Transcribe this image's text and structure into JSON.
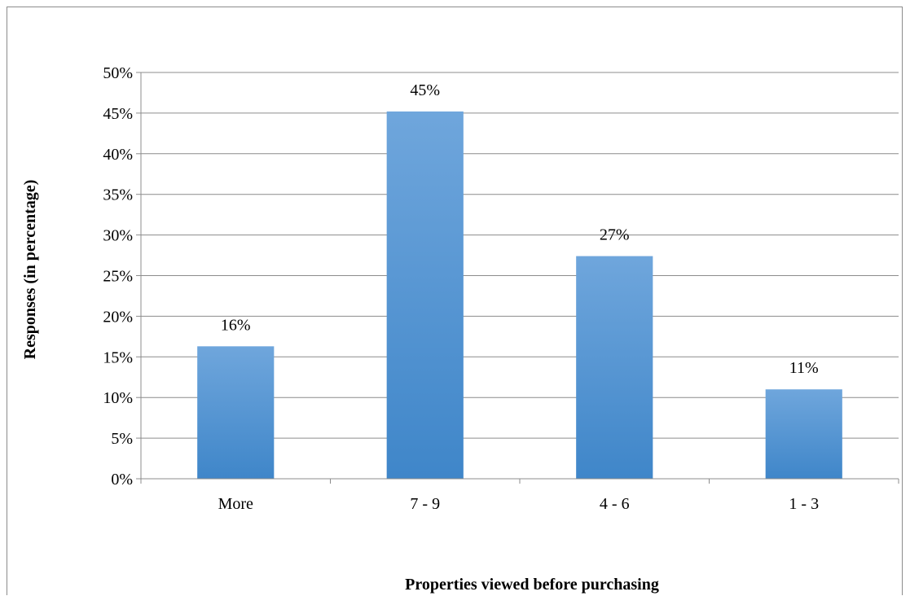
{
  "chart_data": {
    "type": "bar",
    "title": "",
    "categories": [
      "More",
      "7 - 9",
      "4 - 6",
      "1 - 3"
    ],
    "values": [
      16,
      45,
      27,
      11
    ],
    "bar_heights": [
      16.3,
      45.2,
      27.4,
      11.0
    ],
    "data_labels": [
      "16%",
      "45%",
      "27%",
      "11%"
    ],
    "xlabel": "Properties viewed before purchasing",
    "ylabel": "Responses (in percentage)",
    "ylim": [
      0,
      50
    ],
    "ytick_values": [
      0,
      5,
      10,
      15,
      20,
      25,
      30,
      35,
      40,
      45,
      50
    ],
    "ytick_labels": [
      "0%",
      "5%",
      "10%",
      "15%",
      "20%",
      "25%",
      "30%",
      "35%",
      "40%",
      "45%",
      "50%"
    ],
    "grid": true,
    "legend": "none",
    "colors": {
      "bar_top": "#6fa6dc",
      "bar_bottom": "#3f86c9",
      "grid": "#8c8c8c"
    }
  }
}
